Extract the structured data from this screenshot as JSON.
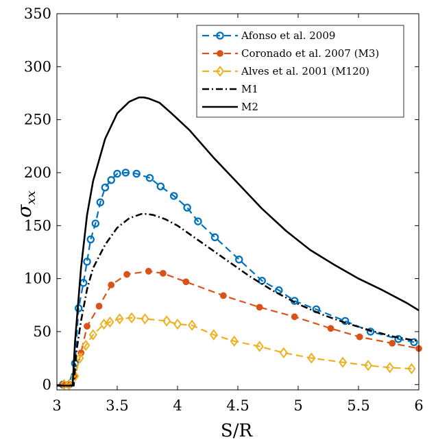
{
  "chart_data": {
    "type": "line",
    "title": "",
    "xlabel": "S/R",
    "ylabel": "σxx",
    "ylabel_base": "σ",
    "ylabel_sub": "xx",
    "xlim": [
      3,
      6
    ],
    "ylim": [
      0,
      350
    ],
    "xticks": [
      3,
      3.5,
      4,
      4.5,
      5,
      5.5,
      6
    ],
    "xtick_labels": [
      "3",
      "3.5",
      "4",
      "4.5",
      "5",
      "5.5",
      "6"
    ],
    "yticks": [
      0,
      50,
      100,
      150,
      200,
      250,
      300,
      350
    ],
    "ytick_labels": [
      "0",
      "50",
      "100",
      "150",
      "200",
      "250",
      "300",
      "350"
    ],
    "legend_position": "top-right",
    "grid": false,
    "series": [
      {
        "name": "Afonso et al. 2009",
        "color": "#0072bd",
        "style": "dashed",
        "marker": "circle-open",
        "x": [
          3.05,
          3.1,
          3.15,
          3.18,
          3.22,
          3.25,
          3.28,
          3.32,
          3.36,
          3.4,
          3.45,
          3.5,
          3.57,
          3.66,
          3.77,
          3.86,
          3.97,
          4.08,
          4.17,
          4.31,
          4.51,
          4.7,
          4.84,
          4.97,
          5.15,
          5.39,
          5.6,
          5.83,
          5.96
        ],
        "y": [
          0,
          0,
          20,
          72,
          96,
          116,
          137,
          152,
          172,
          186,
          193,
          199,
          200,
          199,
          195,
          187,
          178,
          167,
          154,
          139,
          118,
          98,
          89,
          79,
          71,
          60,
          50,
          43,
          40
        ]
      },
      {
        "name": "Coronado et al. 2007 (M3)",
        "color": "#d95319",
        "style": "dashed",
        "marker": "circle-filled",
        "x": [
          3.05,
          3.1,
          3.15,
          3.2,
          3.25,
          3.35,
          3.45,
          3.58,
          3.76,
          3.88,
          4.07,
          4.38,
          4.68,
          4.97,
          5.27,
          5.51,
          5.78,
          6.0
        ],
        "y": [
          0,
          0,
          8,
          30,
          55,
          74,
          94,
          104,
          107,
          105,
          97,
          84,
          73,
          64,
          53,
          45,
          39,
          34
        ]
      },
      {
        "name": "Alves et al. 2001 (M120)",
        "color": "#edb120",
        "style": "dashed",
        "marker": "diamond-open",
        "x": [
          3.06,
          3.1,
          3.15,
          3.19,
          3.24,
          3.3,
          3.39,
          3.44,
          3.52,
          3.62,
          3.73,
          3.91,
          4.0,
          4.12,
          4.3,
          4.47,
          4.68,
          4.88,
          5.11,
          5.37,
          5.58,
          5.76,
          5.94
        ],
        "y": [
          0,
          0,
          8,
          25,
          37,
          47,
          57,
          59,
          62,
          63,
          62,
          60,
          57,
          56,
          47,
          41,
          36,
          30,
          25,
          21,
          18,
          16,
          15
        ]
      },
      {
        "name": "M1",
        "color": "#000000",
        "style": "dashdot",
        "marker": "none",
        "x": [
          3.0,
          3.14,
          3.16,
          3.2,
          3.25,
          3.3,
          3.4,
          3.5,
          3.6,
          3.7,
          3.75,
          3.8,
          3.9,
          4.0,
          4.2,
          4.4,
          4.6,
          4.8,
          5.0,
          5.2,
          5.4,
          5.6,
          5.8,
          6.0
        ],
        "y": [
          -1,
          -1,
          30,
          60,
          90,
          110,
          132,
          148,
          157,
          161,
          161,
          160,
          156,
          150,
          134,
          118,
          102,
          88,
          76,
          66,
          58,
          51,
          45,
          41
        ]
      },
      {
        "name": "M2",
        "color": "#000000",
        "style": "solid",
        "marker": "none",
        "x": [
          3.0,
          3.13,
          3.15,
          3.2,
          3.25,
          3.3,
          3.4,
          3.5,
          3.6,
          3.68,
          3.72,
          3.76,
          3.85,
          3.95,
          4.1,
          4.3,
          4.5,
          4.7,
          4.9,
          5.1,
          5.3,
          5.5,
          5.7,
          5.9,
          6.0
        ],
        "y": [
          -1,
          -1,
          40,
          110,
          160,
          192,
          232,
          256,
          267,
          271,
          271,
          270,
          266,
          256,
          240,
          214,
          190,
          166,
          145,
          127,
          113,
          100,
          89,
          77,
          70
        ]
      }
    ]
  }
}
